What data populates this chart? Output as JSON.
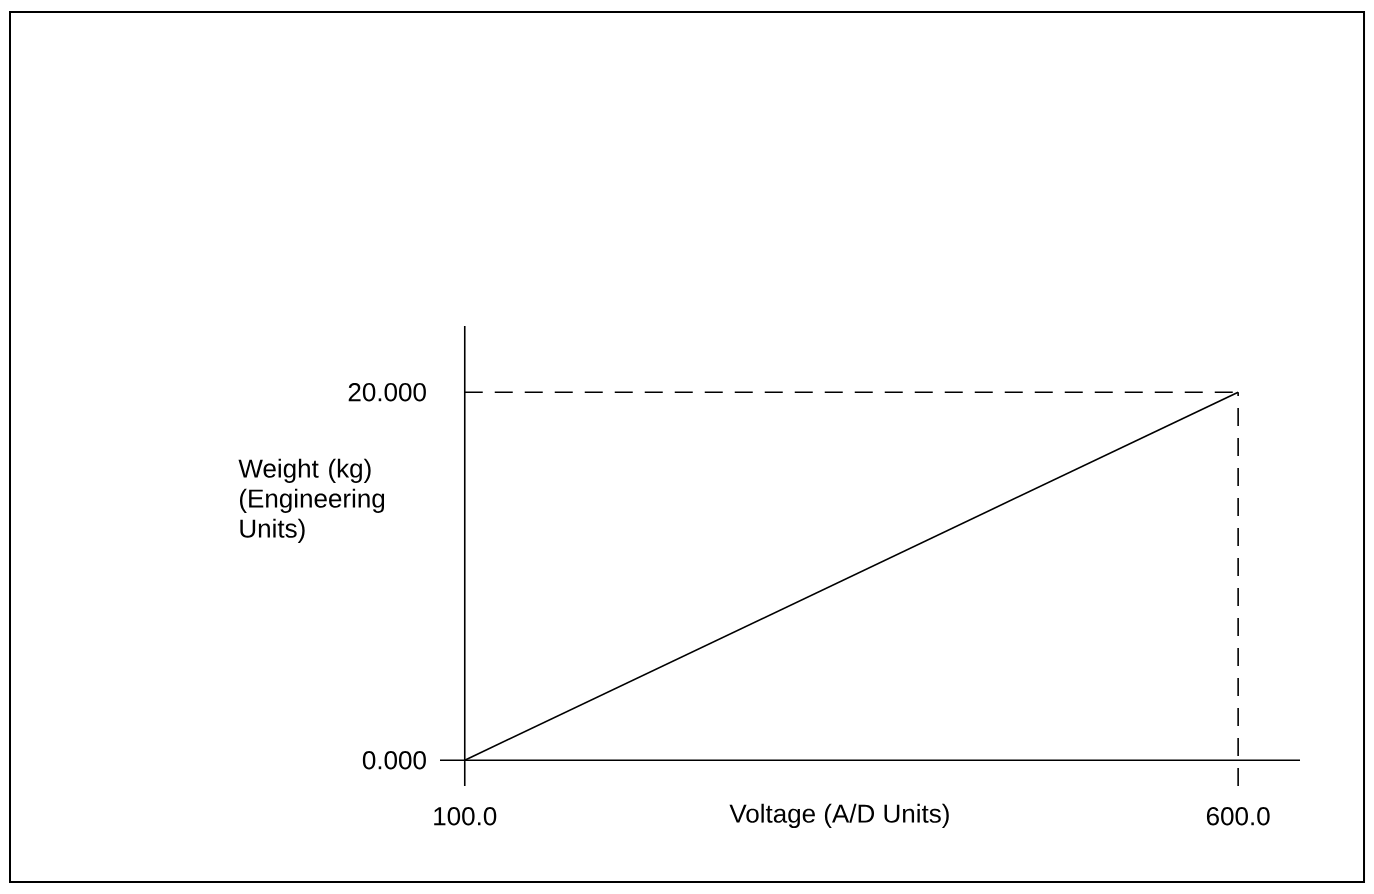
{
  "chart_data": {
    "type": "line",
    "xlabel": "Voltage (A/D Units)",
    "ylabel": "Weight (kg) (Engineering Units)",
    "x": [
      100,
      600
    ],
    "series": [
      {
        "color": "#000000",
        "values": [
          0,
          20
        ]
      }
    ],
    "xlim": [
      84,
      640
    ],
    "ylim": [
      -1.4,
      23.6
    ],
    "xticks": [
      {
        "value": 100,
        "label": "100.0"
      },
      {
        "value": 600,
        "label": "600.0"
      }
    ],
    "yticks": [
      {
        "value": 0,
        "label": "0.000"
      },
      {
        "value": 20,
        "label": "20.000"
      }
    ],
    "ref_lines": [
      {
        "axis": "x",
        "value": 600,
        "color": "#000000",
        "line_style": "dashed"
      },
      {
        "axis": "y",
        "value": 20,
        "color": "#000000",
        "line_style": "dashed"
      }
    ],
    "line_style": "solid",
    "marker": "none"
  }
}
